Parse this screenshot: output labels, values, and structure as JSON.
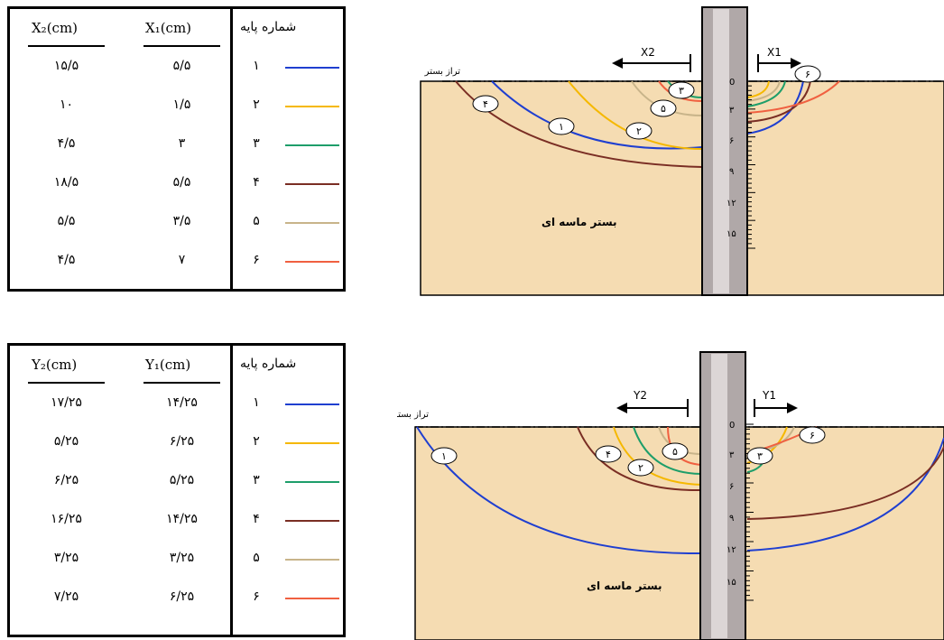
{
  "top": {
    "table": {
      "headers": {
        "col1": "X₂(cm)",
        "col2": "X₁(cm)",
        "col3": "شماره پایه"
      },
      "rows": [
        {
          "x2": "۱۵/۵",
          "x1": "۵/۵",
          "id": "۱",
          "color": "#1f3fd0"
        },
        {
          "x2": "۱۰",
          "x1": "۱/۵",
          "id": "۲",
          "color": "#f5b800"
        },
        {
          "x2": "۴/۵",
          "x1": "۳",
          "id": "۳",
          "color": "#1e9e6a"
        },
        {
          "x2": "۱۸/۵",
          "x1": "۵/۵",
          "id": "۴",
          "color": "#7a2e24"
        },
        {
          "x2": "۵/۵",
          "x1": "۳/۵",
          "id": "۵",
          "color": "#c8b48a"
        },
        {
          "x2": "۴/۵",
          "x1": "۷",
          "id": "۶",
          "color": "#f06040"
        }
      ]
    },
    "diagram": {
      "bed_level_label": "تراز بستر",
      "bed_label": "بستر ماسه ای",
      "left_dim_label": "X2",
      "right_dim_label": "X1",
      "scale_ticks": [
        "0",
        "۳",
        "۶",
        "۹",
        "۱۲",
        "۱۵"
      ],
      "markers": [
        "۱",
        "۲",
        "۳",
        "۴",
        "۵",
        "۶"
      ]
    }
  },
  "bottom": {
    "table": {
      "headers": {
        "col1": "Y₂(cm)",
        "col2": "Y₁(cm)",
        "col3": "شماره پایه"
      },
      "rows": [
        {
          "x2": "۱۷/۲۵",
          "x1": "۱۴/۲۵",
          "id": "۱",
          "color": "#1f3fd0"
        },
        {
          "x2": "۵/۲۵",
          "x1": "۶/۲۵",
          "id": "۲",
          "color": "#f5b800"
        },
        {
          "x2": "۶/۲۵",
          "x1": "۵/۲۵",
          "id": "۳",
          "color": "#1e9e6a"
        },
        {
          "x2": "۱۶/۲۵",
          "x1": "۱۴/۲۵",
          "id": "۴",
          "color": "#7a2e24"
        },
        {
          "x2": "۳/۲۵",
          "x1": "۳/۲۵",
          "id": "۵",
          "color": "#c8b48a"
        },
        {
          "x2": "۷/۲۵",
          "x1": "۶/۲۵",
          "id": "۶",
          "color": "#f06040"
        }
      ]
    },
    "diagram": {
      "bed_level_label": "تراز بستر",
      "bed_label": "بستر ماسه ای",
      "left_dim_label": "Y2",
      "right_dim_label": "Y1",
      "scale_ticks": [
        "0",
        "۳",
        "۶",
        "۹",
        "۱۲",
        "۱۵"
      ],
      "markers": [
        "۱",
        "۲",
        "۳",
        "۴",
        "۵",
        "۶"
      ]
    }
  }
}
